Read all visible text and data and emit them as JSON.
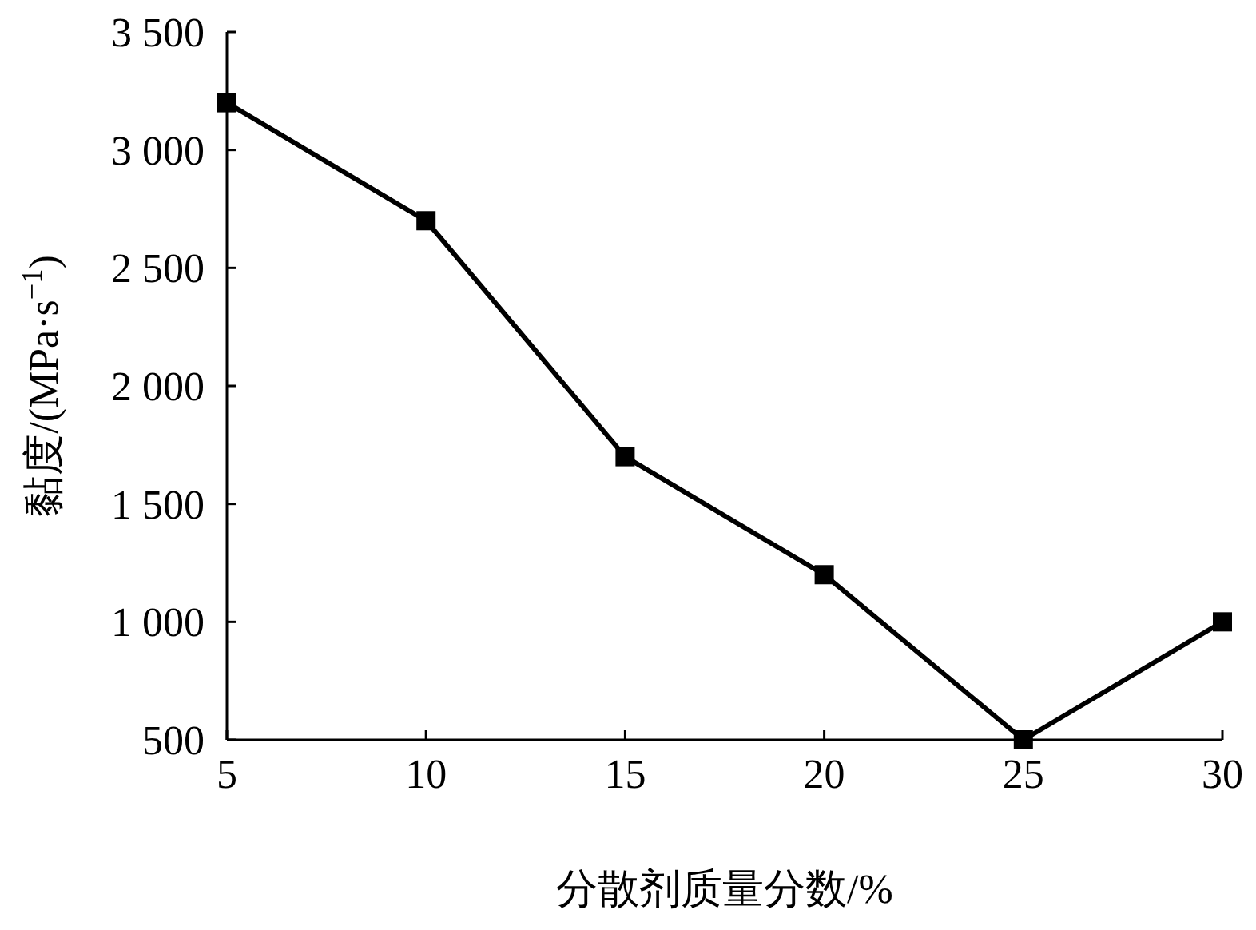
{
  "chart_data": {
    "type": "line",
    "xlabel": "分散剂质量分数/%",
    "ylabel": "黏度/(MPa·s$^{−1}$)",
    "x": [
      5,
      10,
      15,
      20,
      25,
      30
    ],
    "series": [
      {
        "color": "#000000",
        "values": [
          3200,
          2700,
          1700,
          1200,
          500,
          1000
        ]
      }
    ],
    "xlim": [
      5,
      30
    ],
    "xticks": [
      5,
      10,
      15,
      20,
      25,
      30
    ],
    "ylim": [
      500,
      3500
    ],
    "yticks": [
      500,
      {
        "value": 1000,
        "label": "1 000"
      },
      {
        "value": 1500,
        "label": "1 500"
      },
      {
        "value": 2000,
        "label": "2 000"
      },
      {
        "value": 2500,
        "label": "2 500"
      },
      {
        "value": 3000,
        "label": "3 000"
      },
      {
        "value": 3500,
        "label": "3 500"
      }
    ],
    "marker": "square",
    "line_style": "solid"
  }
}
